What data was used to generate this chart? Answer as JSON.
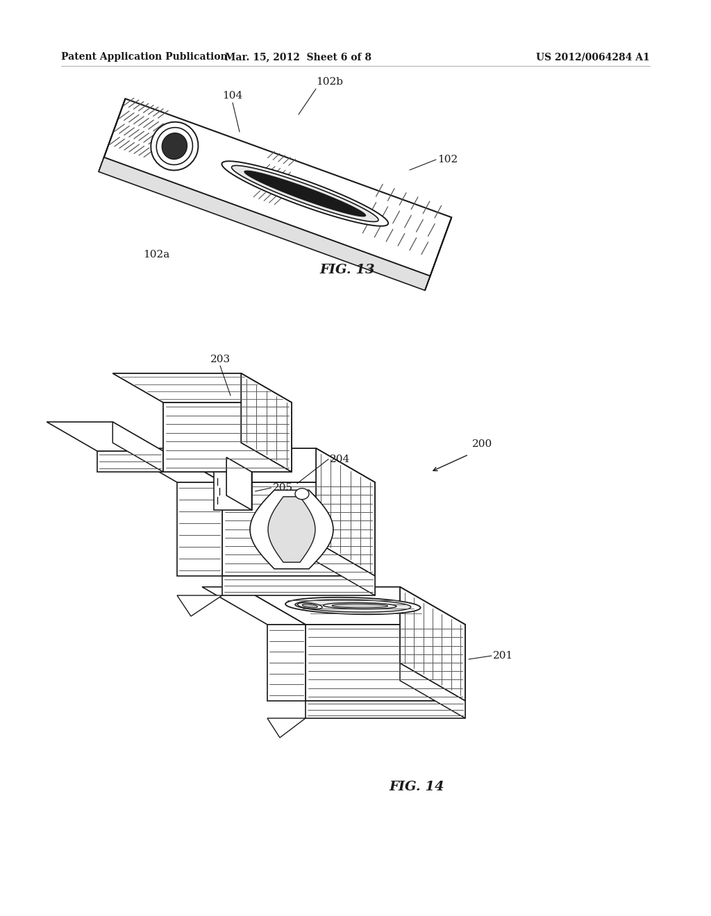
{
  "background_color": "#ffffff",
  "header_left": "Patent Application Publication",
  "header_center": "Mar. 15, 2012  Sheet 6 of 8",
  "header_right": "US 2012/0064284 A1",
  "fig13_label": "FIG. 13",
  "fig14_label": "FIG. 14",
  "line_color": "#1a1a1a",
  "hatch_color": "#555555",
  "label_fontsize": 11,
  "header_fontsize": 10,
  "fig_label_fontsize": 14
}
